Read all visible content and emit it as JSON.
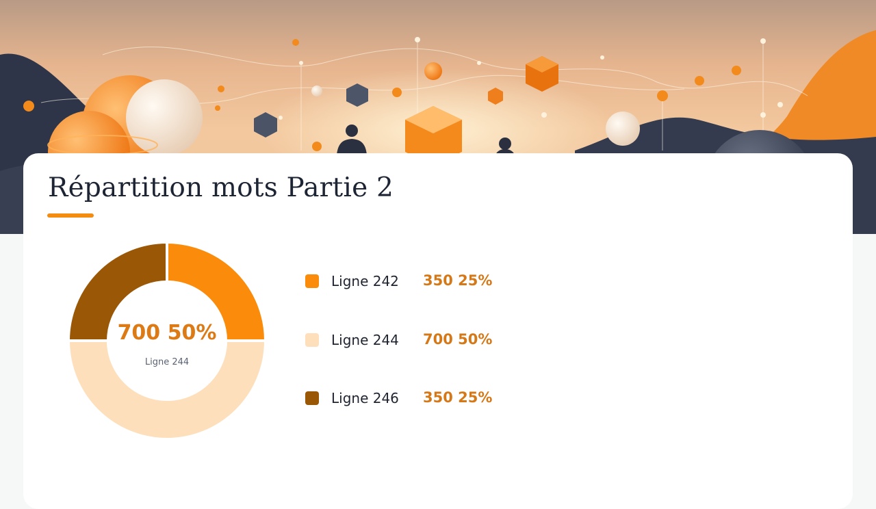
{
  "colors": {
    "accent": "#f28c12",
    "value_text": "#d47818",
    "slice_1": "#fb8c0b",
    "slice_2": "#fedfbb",
    "slice_3": "#9a5705"
  },
  "chart_data": {
    "type": "pie",
    "variant": "donut",
    "title": "Répartition mots Partie 2",
    "slices": [
      {
        "label": "Ligne 242",
        "value": 350,
        "percent": "25%",
        "display": "350 25%",
        "color": "#fb8c0b"
      },
      {
        "label": "Ligne 244",
        "value": 700,
        "percent": "50%",
        "display": "700 50%",
        "color": "#fedfbb"
      },
      {
        "label": "Ligne 246",
        "value": 350,
        "percent": "25%",
        "display": "350 25%",
        "color": "#9a5705"
      }
    ],
    "center": {
      "value": "700 50%",
      "label": "Ligne 244"
    },
    "legend_position": "right"
  }
}
